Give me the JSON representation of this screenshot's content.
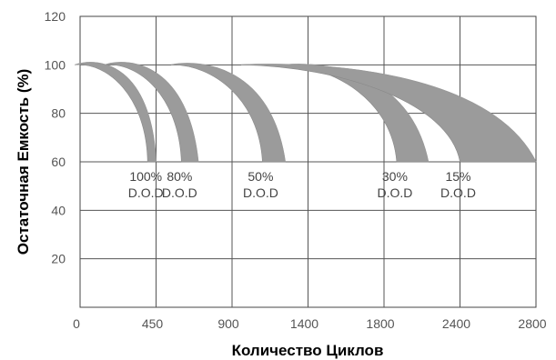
{
  "chart_data": {
    "type": "area",
    "title": "",
    "xlabel": "Количество Циклов",
    "ylabel": "Остаточная Емкость (%)",
    "x_tick_labels": [
      "0",
      "450",
      "900",
      "1400",
      "1800",
      "2400",
      "2800"
    ],
    "y_ticks": [
      20,
      40,
      60,
      80,
      100,
      120
    ],
    "ylim": [
      0,
      120
    ],
    "grid": true,
    "band_color": "#9b9b9b",
    "series": [
      {
        "label_line1": "100%",
        "label_line2": "D.O.D",
        "x_range_at_60": [
          400,
          450
        ],
        "peak": 102
      },
      {
        "label_line1": "80%",
        "label_line2": "D.O.D",
        "x_range_at_60": [
          600,
          700
        ],
        "peak": 102
      },
      {
        "label_line1": "50%",
        "label_line2": "D.O.D",
        "x_range_at_60": [
          1100,
          1250
        ],
        "peak": 101
      },
      {
        "label_line1": "30%",
        "label_line2": "D.O.D",
        "x_range_at_60": [
          1900,
          2150
        ],
        "peak": 100
      },
      {
        "label_line1": "15%",
        "label_line2": "D.O.D",
        "x_range_at_60": [
          2400,
          2800
        ],
        "peak": 100
      }
    ]
  }
}
